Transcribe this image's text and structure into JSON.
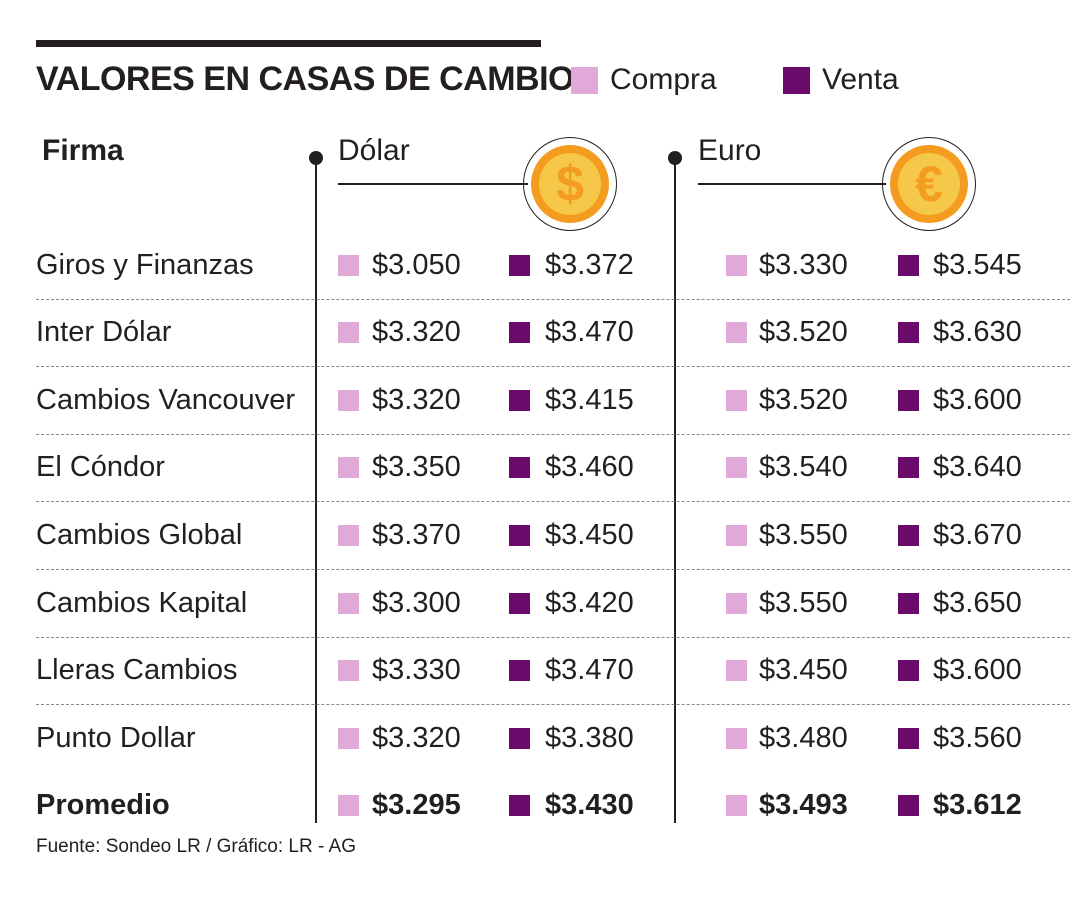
{
  "title": "VALORES EN CASAS DE CAMBIO",
  "legend": {
    "compra": "Compra",
    "venta": "Venta"
  },
  "colors": {
    "compra": "#e0a9d8",
    "venta": "#6a0b6b",
    "coin_outer": "#f39c1f",
    "coin_inner": "#f6c84a"
  },
  "headers": {
    "firma": "Firma",
    "dolar": "Dólar",
    "euro": "Euro"
  },
  "icons": {
    "dolar": "dollar-coin-icon",
    "euro": "euro-coin-icon"
  },
  "coin_symbols": {
    "dolar": "$",
    "euro": "€"
  },
  "rows": [
    {
      "firma": "Giros y Finanzas",
      "dolar_compra": "$3.050",
      "dolar_venta": "$3.372",
      "euro_compra": "$3.330",
      "euro_venta": "$3.545"
    },
    {
      "firma": "Inter Dólar",
      "dolar_compra": "$3.320",
      "dolar_venta": "$3.470",
      "euro_compra": "$3.520",
      "euro_venta": "$3.630"
    },
    {
      "firma": "Cambios Vancouver",
      "dolar_compra": "$3.320",
      "dolar_venta": "$3.415",
      "euro_compra": "$3.520",
      "euro_venta": "$3.600"
    },
    {
      "firma": "El Cóndor",
      "dolar_compra": "$3.350",
      "dolar_venta": "$3.460",
      "euro_compra": "$3.540",
      "euro_venta": "$3.640"
    },
    {
      "firma": "Cambios Global",
      "dolar_compra": "$3.370",
      "dolar_venta": "$3.450",
      "euro_compra": "$3.550",
      "euro_venta": "$3.670"
    },
    {
      "firma": "Cambios Kapital",
      "dolar_compra": "$3.300",
      "dolar_venta": "$3.420",
      "euro_compra": "$3.550",
      "euro_venta": "$3.650"
    },
    {
      "firma": "Lleras Cambios",
      "dolar_compra": "$3.330",
      "dolar_venta": "$3.470",
      "euro_compra": "$3.450",
      "euro_venta": "$3.600"
    },
    {
      "firma": "Punto Dollar",
      "dolar_compra": "$3.320",
      "dolar_venta": "$3.380",
      "euro_compra": "$3.480",
      "euro_venta": "$3.560"
    },
    {
      "firma": "Promedio",
      "dolar_compra": "$3.295",
      "dolar_venta": "$3.430",
      "euro_compra": "$3.493",
      "euro_venta": "$3.612"
    }
  ],
  "source": "Fuente: Sondeo LR / Gráfico: LR - AG",
  "chart_data": {
    "type": "table",
    "title": "VALORES EN CASAS DE CAMBIO",
    "columns": [
      "Firma",
      "Dólar Compra",
      "Dólar Venta",
      "Euro Compra",
      "Euro Venta"
    ],
    "legend": [
      "Compra",
      "Venta"
    ],
    "rows": [
      [
        "Giros y Finanzas",
        3050,
        3372,
        3330,
        3545
      ],
      [
        "Inter Dólar",
        3320,
        3470,
        3520,
        3630
      ],
      [
        "Cambios Vancouver",
        3320,
        3415,
        3520,
        3600
      ],
      [
        "El Cóndor",
        3350,
        3460,
        3540,
        3640
      ],
      [
        "Cambios Global",
        3370,
        3450,
        3550,
        3670
      ],
      [
        "Cambios Kapital",
        3300,
        3420,
        3550,
        3650
      ],
      [
        "Lleras Cambios",
        3330,
        3470,
        3450,
        3600
      ],
      [
        "Punto Dollar",
        3320,
        3380,
        3480,
        3560
      ],
      [
        "Promedio",
        3295,
        3430,
        3493,
        3612
      ]
    ]
  }
}
